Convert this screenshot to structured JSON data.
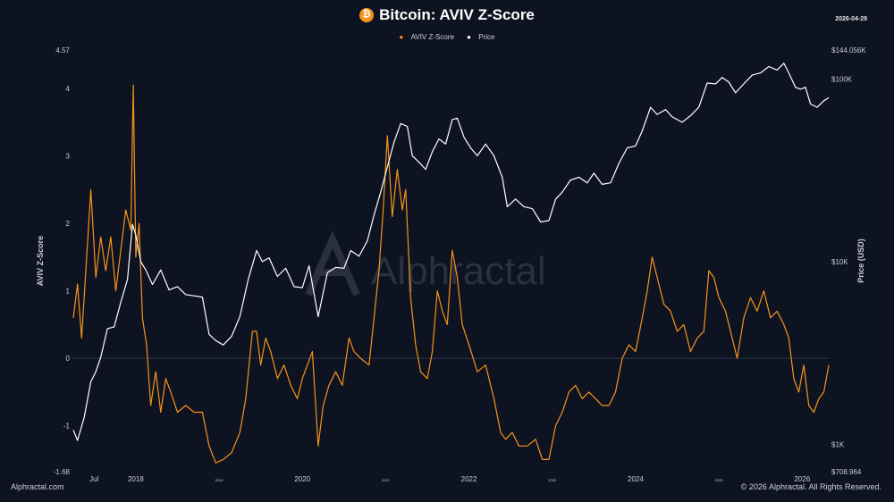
{
  "header": {
    "title": "Bitcoin: AVIV Z-Score",
    "date": "2026-04-29",
    "btc_symbol": "₿"
  },
  "legend": {
    "aviv_label": "AVIV Z-Score",
    "price_label": "Price"
  },
  "footer": {
    "left": "Alphractal.com",
    "right": "© 2026 Alphractal. All Rights Reserved."
  },
  "watermark": "Alphractal",
  "colors": {
    "background": "#0d1321",
    "aviv": "#f7931a",
    "price": "#ffffff"
  },
  "chart_data": {
    "type": "line",
    "x_ticks": [
      {
        "label": "Jul",
        "x": 2017.5,
        "small": false
      },
      {
        "label": "2018",
        "x": 2018.0,
        "small": false
      },
      {
        "label": "2019",
        "x": 2019.0,
        "small": true
      },
      {
        "label": "2020",
        "x": 2020.0,
        "small": false
      },
      {
        "label": "2021",
        "x": 2021.0,
        "small": true
      },
      {
        "label": "2022",
        "x": 2022.0,
        "small": false
      },
      {
        "label": "2023",
        "x": 2023.0,
        "small": true
      },
      {
        "label": "2024",
        "x": 2024.0,
        "small": false
      },
      {
        "label": "2025",
        "x": 2025.0,
        "small": true
      },
      {
        "label": "2026",
        "x": 2026.0,
        "small": false
      }
    ],
    "xlim": [
      2017.25,
      2026.33
    ],
    "y_left": {
      "label": "AVIV Z-Score",
      "lim": [
        -1.68,
        4.57
      ],
      "ticks": [
        {
          "label": "4.57",
          "value": 4.57
        },
        {
          "label": "4",
          "value": 4
        },
        {
          "label": "3",
          "value": 3
        },
        {
          "label": "2",
          "value": 2
        },
        {
          "label": "1",
          "value": 1
        },
        {
          "label": "0",
          "value": 0
        },
        {
          "label": "-1",
          "value": -1
        },
        {
          "label": "-1.68",
          "value": -1.68
        }
      ]
    },
    "y_right": {
      "label": "Price (USD)",
      "scale": "log",
      "lim": [
        708.964,
        144056
      ],
      "ticks": [
        {
          "label": "$144.056K",
          "value": 144056
        },
        {
          "label": "$100K",
          "value": 100000
        },
        {
          "label": "$10K",
          "value": 10000
        },
        {
          "label": "$1K",
          "value": 1000
        },
        {
          "label": "$708.964",
          "value": 708.964
        }
      ]
    },
    "series": [
      {
        "name": "AVIV Z-Score",
        "axis": "left",
        "points": [
          [
            2017.25,
            0.6
          ],
          [
            2017.3,
            1.1
          ],
          [
            2017.35,
            0.3
          ],
          [
            2017.4,
            1.3
          ],
          [
            2017.46,
            2.5
          ],
          [
            2017.52,
            1.2
          ],
          [
            2017.58,
            1.8
          ],
          [
            2017.64,
            1.3
          ],
          [
            2017.7,
            1.8
          ],
          [
            2017.76,
            1.0
          ],
          [
            2017.82,
            1.6
          ],
          [
            2017.88,
            2.2
          ],
          [
            2017.94,
            1.9
          ],
          [
            2017.97,
            4.05
          ],
          [
            2018.0,
            1.5
          ],
          [
            2018.04,
            2.0
          ],
          [
            2018.08,
            0.6
          ],
          [
            2018.13,
            0.2
          ],
          [
            2018.18,
            -0.7
          ],
          [
            2018.24,
            -0.2
          ],
          [
            2018.3,
            -0.8
          ],
          [
            2018.36,
            -0.3
          ],
          [
            2018.42,
            -0.5
          ],
          [
            2018.5,
            -0.8
          ],
          [
            2018.6,
            -0.7
          ],
          [
            2018.7,
            -0.8
          ],
          [
            2018.8,
            -0.8
          ],
          [
            2018.88,
            -1.3
          ],
          [
            2018.96,
            -1.55
          ],
          [
            2019.05,
            -1.5
          ],
          [
            2019.15,
            -1.4
          ],
          [
            2019.25,
            -1.1
          ],
          [
            2019.32,
            -0.6
          ],
          [
            2019.4,
            0.4
          ],
          [
            2019.45,
            0.4
          ],
          [
            2019.5,
            -0.1
          ],
          [
            2019.56,
            0.3
          ],
          [
            2019.62,
            0.1
          ],
          [
            2019.7,
            -0.3
          ],
          [
            2019.78,
            -0.1
          ],
          [
            2019.86,
            -0.4
          ],
          [
            2019.94,
            -0.6
          ],
          [
            2020.0,
            -0.3
          ],
          [
            2020.06,
            -0.1
          ],
          [
            2020.12,
            0.1
          ],
          [
            2020.19,
            -1.3
          ],
          [
            2020.25,
            -0.7
          ],
          [
            2020.32,
            -0.4
          ],
          [
            2020.4,
            -0.2
          ],
          [
            2020.48,
            -0.4
          ],
          [
            2020.56,
            0.3
          ],
          [
            2020.62,
            0.1
          ],
          [
            2020.7,
            0.0
          ],
          [
            2020.8,
            -0.1
          ],
          [
            2020.86,
            0.6
          ],
          [
            2020.92,
            1.3
          ],
          [
            2020.97,
            2.2
          ],
          [
            2021.02,
            3.3
          ],
          [
            2021.08,
            2.1
          ],
          [
            2021.14,
            2.8
          ],
          [
            2021.2,
            2.2
          ],
          [
            2021.24,
            2.5
          ],
          [
            2021.3,
            0.9
          ],
          [
            2021.36,
            0.2
          ],
          [
            2021.42,
            -0.2
          ],
          [
            2021.5,
            -0.3
          ],
          [
            2021.56,
            0.1
          ],
          [
            2021.62,
            1.0
          ],
          [
            2021.68,
            0.7
          ],
          [
            2021.74,
            0.5
          ],
          [
            2021.8,
            1.6
          ],
          [
            2021.86,
            1.2
          ],
          [
            2021.92,
            0.5
          ],
          [
            2022.0,
            0.2
          ],
          [
            2022.1,
            -0.2
          ],
          [
            2022.2,
            -0.1
          ],
          [
            2022.3,
            -0.6
          ],
          [
            2022.38,
            -1.1
          ],
          [
            2022.44,
            -1.2
          ],
          [
            2022.52,
            -1.1
          ],
          [
            2022.6,
            -1.3
          ],
          [
            2022.7,
            -1.3
          ],
          [
            2022.8,
            -1.2
          ],
          [
            2022.88,
            -1.5
          ],
          [
            2022.96,
            -1.5
          ],
          [
            2023.04,
            -1.0
          ],
          [
            2023.12,
            -0.8
          ],
          [
            2023.2,
            -0.5
          ],
          [
            2023.28,
            -0.4
          ],
          [
            2023.36,
            -0.6
          ],
          [
            2023.44,
            -0.5
          ],
          [
            2023.52,
            -0.6
          ],
          [
            2023.6,
            -0.7
          ],
          [
            2023.68,
            -0.7
          ],
          [
            2023.76,
            -0.5
          ],
          [
            2023.84,
            0.0
          ],
          [
            2023.92,
            0.2
          ],
          [
            2024.0,
            0.1
          ],
          [
            2024.08,
            0.6
          ],
          [
            2024.14,
            1.0
          ],
          [
            2024.2,
            1.5
          ],
          [
            2024.26,
            1.2
          ],
          [
            2024.34,
            0.8
          ],
          [
            2024.42,
            0.7
          ],
          [
            2024.5,
            0.4
          ],
          [
            2024.58,
            0.5
          ],
          [
            2024.66,
            0.1
          ],
          [
            2024.74,
            0.3
          ],
          [
            2024.82,
            0.4
          ],
          [
            2024.88,
            1.3
          ],
          [
            2024.94,
            1.2
          ],
          [
            2025.0,
            0.9
          ],
          [
            2025.08,
            0.7
          ],
          [
            2025.16,
            0.3
          ],
          [
            2025.22,
            0.0
          ],
          [
            2025.3,
            0.6
          ],
          [
            2025.38,
            0.9
          ],
          [
            2025.46,
            0.7
          ],
          [
            2025.54,
            1.0
          ],
          [
            2025.62,
            0.6
          ],
          [
            2025.7,
            0.7
          ],
          [
            2025.78,
            0.5
          ],
          [
            2025.84,
            0.3
          ],
          [
            2025.9,
            -0.3
          ],
          [
            2025.96,
            -0.5
          ],
          [
            2026.02,
            -0.1
          ],
          [
            2026.08,
            -0.7
          ],
          [
            2026.14,
            -0.8
          ],
          [
            2026.2,
            -0.6
          ],
          [
            2026.26,
            -0.5
          ],
          [
            2026.32,
            -0.1
          ]
        ]
      },
      {
        "name": "Price",
        "axis": "right",
        "points": [
          [
            2017.25,
            1200
          ],
          [
            2017.3,
            1050
          ],
          [
            2017.38,
            1400
          ],
          [
            2017.46,
            2200
          ],
          [
            2017.52,
            2500
          ],
          [
            2017.58,
            3000
          ],
          [
            2017.66,
            4300
          ],
          [
            2017.74,
            4400
          ],
          [
            2017.82,
            6000
          ],
          [
            2017.9,
            8000
          ],
          [
            2017.96,
            16000
          ],
          [
            2018.0,
            14000
          ],
          [
            2018.06,
            10000
          ],
          [
            2018.12,
            9000
          ],
          [
            2018.2,
            7500
          ],
          [
            2018.3,
            9000
          ],
          [
            2018.4,
            7000
          ],
          [
            2018.5,
            7300
          ],
          [
            2018.6,
            6600
          ],
          [
            2018.7,
            6500
          ],
          [
            2018.8,
            6400
          ],
          [
            2018.88,
            4000
          ],
          [
            2018.96,
            3700
          ],
          [
            2019.05,
            3500
          ],
          [
            2019.15,
            3900
          ],
          [
            2019.25,
            5000
          ],
          [
            2019.35,
            8000
          ],
          [
            2019.45,
            11500
          ],
          [
            2019.52,
            10000
          ],
          [
            2019.6,
            10500
          ],
          [
            2019.7,
            8300
          ],
          [
            2019.8,
            9200
          ],
          [
            2019.9,
            7300
          ],
          [
            2020.0,
            7200
          ],
          [
            2020.08,
            9500
          ],
          [
            2020.19,
            5000
          ],
          [
            2020.3,
            8700
          ],
          [
            2020.4,
            9300
          ],
          [
            2020.5,
            9200
          ],
          [
            2020.58,
            11500
          ],
          [
            2020.68,
            10700
          ],
          [
            2020.78,
            13000
          ],
          [
            2020.86,
            18000
          ],
          [
            2020.94,
            24000
          ],
          [
            2021.02,
            33000
          ],
          [
            2021.1,
            45000
          ],
          [
            2021.18,
            57000
          ],
          [
            2021.26,
            55000
          ],
          [
            2021.32,
            38000
          ],
          [
            2021.4,
            35000
          ],
          [
            2021.48,
            32000
          ],
          [
            2021.56,
            40000
          ],
          [
            2021.64,
            47000
          ],
          [
            2021.72,
            44000
          ],
          [
            2021.8,
            60000
          ],
          [
            2021.86,
            61000
          ],
          [
            2021.94,
            48000
          ],
          [
            2022.02,
            42000
          ],
          [
            2022.1,
            38000
          ],
          [
            2022.2,
            44000
          ],
          [
            2022.3,
            38000
          ],
          [
            2022.4,
            29000
          ],
          [
            2022.46,
            20000
          ],
          [
            2022.56,
            22000
          ],
          [
            2022.66,
            20000
          ],
          [
            2022.76,
            19500
          ],
          [
            2022.86,
            16500
          ],
          [
            2022.96,
            16800
          ],
          [
            2023.04,
            22000
          ],
          [
            2023.12,
            24000
          ],
          [
            2023.22,
            28000
          ],
          [
            2023.32,
            29000
          ],
          [
            2023.42,
            27000
          ],
          [
            2023.5,
            30500
          ],
          [
            2023.6,
            26500
          ],
          [
            2023.7,
            27000
          ],
          [
            2023.8,
            34500
          ],
          [
            2023.9,
            42000
          ],
          [
            2024.0,
            43000
          ],
          [
            2024.08,
            52000
          ],
          [
            2024.18,
            70000
          ],
          [
            2024.26,
            64000
          ],
          [
            2024.36,
            68000
          ],
          [
            2024.44,
            62000
          ],
          [
            2024.56,
            58000
          ],
          [
            2024.66,
            63000
          ],
          [
            2024.76,
            70000
          ],
          [
            2024.86,
            95000
          ],
          [
            2024.96,
            94000
          ],
          [
            2025.04,
            102000
          ],
          [
            2025.12,
            96000
          ],
          [
            2025.2,
            84000
          ],
          [
            2025.3,
            94000
          ],
          [
            2025.4,
            105000
          ],
          [
            2025.5,
            108000
          ],
          [
            2025.6,
            117000
          ],
          [
            2025.7,
            112000
          ],
          [
            2025.78,
            122000
          ],
          [
            2025.84,
            108000
          ],
          [
            2025.92,
            90000
          ],
          [
            2025.98,
            88000
          ],
          [
            2026.04,
            90000
          ],
          [
            2026.1,
            73000
          ],
          [
            2026.18,
            70000
          ],
          [
            2026.26,
            76000
          ],
          [
            2026.32,
            79000
          ]
        ]
      }
    ],
    "grid": false,
    "legend_position": "top-center"
  }
}
